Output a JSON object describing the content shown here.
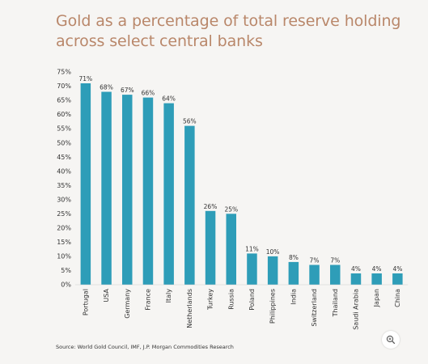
{
  "title": "Gold as a percentage of total reserve holding across select central banks",
  "source": "Source: World Gold Council, IMF, J.P. Morgan Commodities Research",
  "zoom_icon": "zoom-in-icon",
  "colors": {
    "bar": "#2e9db8",
    "title": "#b9876a",
    "axis": "#333333"
  },
  "chart_data": {
    "type": "bar",
    "title": "Gold as a percentage of total reserve holding across select central banks",
    "xlabel": "",
    "ylabel": "",
    "ylim": [
      0,
      75
    ],
    "yticks": [
      "0%",
      "5%",
      "10%",
      "15%",
      "20%",
      "25%",
      "30%",
      "35%",
      "40%",
      "45%",
      "50%",
      "55%",
      "60%",
      "65%",
      "70%",
      "75%"
    ],
    "grid": false,
    "categories": [
      "Portugal",
      "USA",
      "Germany",
      "France",
      "Italy",
      "Netherlands",
      "Turkey",
      "Russia",
      "Poland",
      "Philippines",
      "India",
      "Switzerland",
      "Thailand",
      "Saudi Arabia",
      "Japan",
      "China"
    ],
    "values": [
      71,
      68,
      67,
      66,
      64,
      56,
      26,
      25,
      11,
      10,
      8,
      7,
      7,
      4,
      4,
      4
    ],
    "labels": [
      "71%",
      "68%",
      "67%",
      "66%",
      "64%",
      "56%",
      "26%",
      "25%",
      "11%",
      "10%",
      "8%",
      "7%",
      "7%",
      "4%",
      "4%",
      "4%"
    ]
  }
}
